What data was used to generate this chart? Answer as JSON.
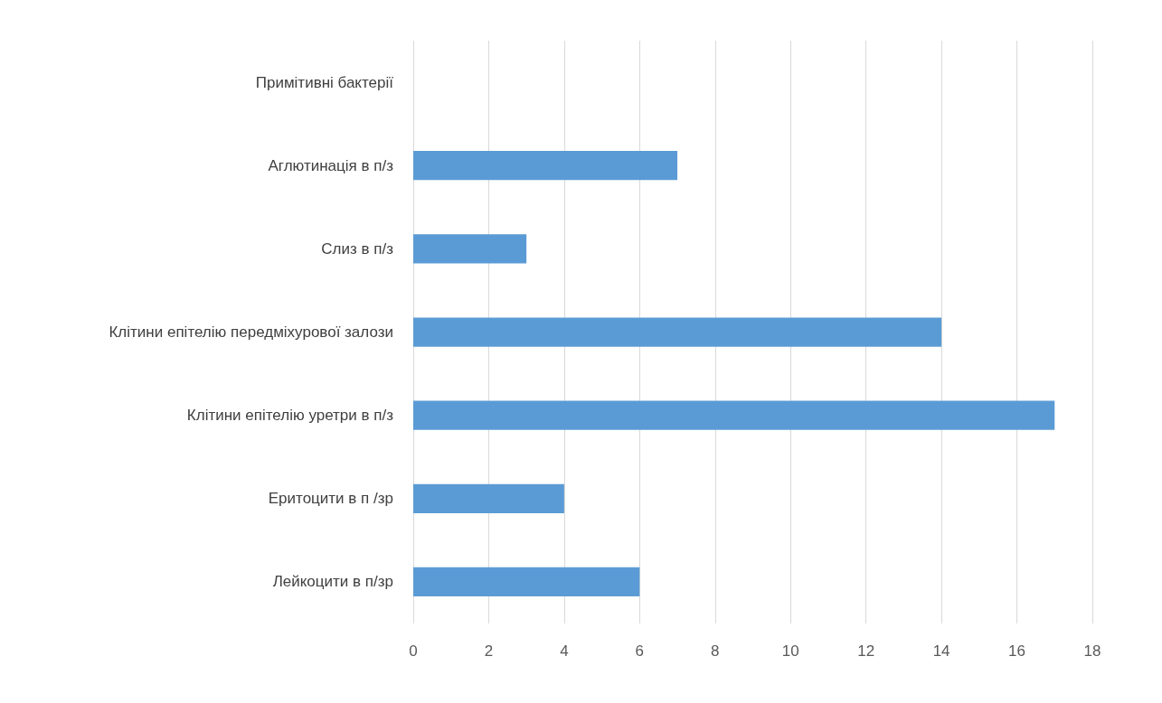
{
  "chart_data": {
    "type": "bar",
    "orientation": "horizontal",
    "categories": [
      "Примітивні бактерії",
      "Аглютинація в п/з",
      "Слиз в п/з",
      "Клітини епітелію передміхурової залози",
      "Клітини епітелію уретри в п/з",
      "Еритоцити в п /зр",
      "Лейкоцити в п/зр"
    ],
    "values": [
      0,
      7,
      3,
      14,
      17,
      4,
      6
    ],
    "color": "#5b9bd5",
    "xlim": [
      0,
      18
    ],
    "xticks": [
      0,
      2,
      4,
      6,
      8,
      10,
      12,
      14,
      16,
      18
    ],
    "grid": "x"
  }
}
